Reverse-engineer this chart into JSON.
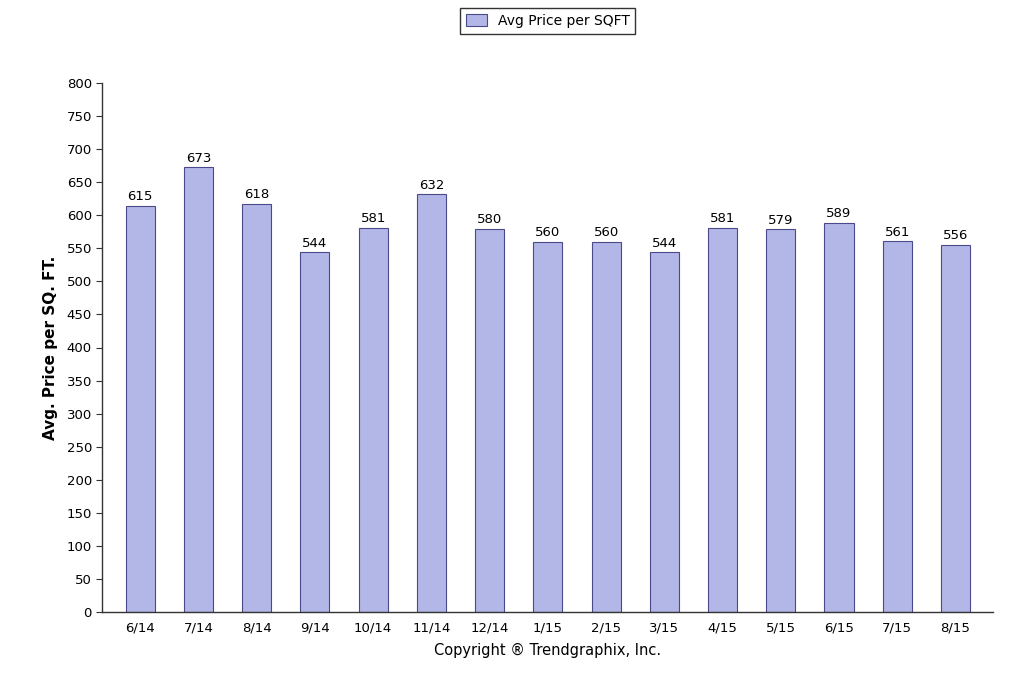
{
  "categories": [
    "6/14",
    "7/14",
    "8/14",
    "9/14",
    "10/14",
    "11/14",
    "12/14",
    "1/15",
    "2/15",
    "3/15",
    "4/15",
    "5/15",
    "6/15",
    "7/15",
    "8/15"
  ],
  "values": [
    615,
    673,
    618,
    544,
    581,
    632,
    580,
    560,
    560,
    544,
    581,
    579,
    589,
    561,
    556
  ],
  "bar_color": "#b3b7e8",
  "bar_edge_color": "#4a4a8a",
  "ylabel": "Avg. Price per SQ. FT.",
  "xlabel": "Copyright ® Trendgraphix, Inc.",
  "legend_label": "Avg Price per SQFT",
  "ylim": [
    0,
    800
  ],
  "yticks": [
    0,
    50,
    100,
    150,
    200,
    250,
    300,
    350,
    400,
    450,
    500,
    550,
    600,
    650,
    700,
    750,
    800
  ],
  "background_color": "#ffffff",
  "bar_width": 0.5,
  "axis_label_fontsize": 11,
  "tick_fontsize": 9.5,
  "value_label_fontsize": 9.5,
  "legend_fontsize": 10
}
